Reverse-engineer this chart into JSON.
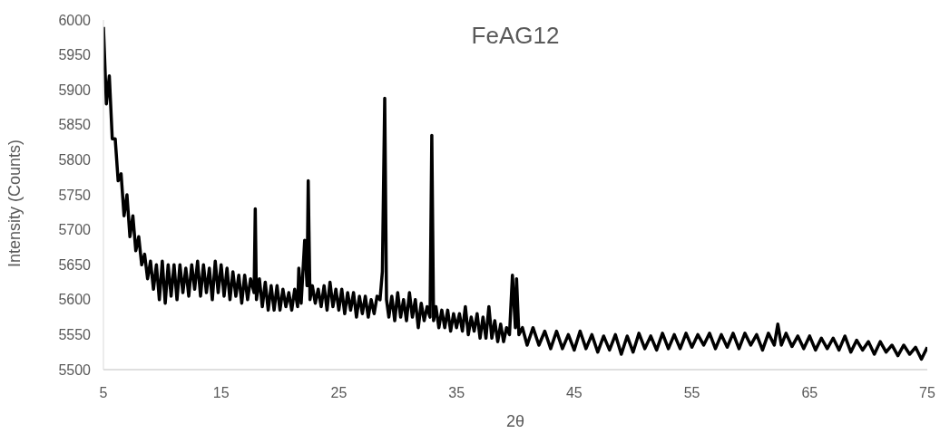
{
  "chart_data": {
    "type": "line",
    "title": "FeAG12",
    "xlabel": "2θ",
    "ylabel": "Intensity (Counts)",
    "xlim": [
      5,
      75
    ],
    "xticks": [
      5,
      15,
      25,
      35,
      45,
      55,
      65,
      75
    ],
    "ylim": [
      5500,
      6000
    ],
    "yticks": [
      5500,
      5550,
      5600,
      5650,
      5700,
      5750,
      5800,
      5850,
      5900,
      5950,
      6000
    ],
    "grid": false,
    "legend": false,
    "marker": "none",
    "line_style": "solid",
    "series": [
      {
        "color": "#000000",
        "x": [
          5,
          5.25,
          5.5,
          5.75,
          6,
          6.25,
          6.5,
          6.75,
          7,
          7.25,
          7.5,
          7.75,
          8,
          8.25,
          8.5,
          8.75,
          9,
          9.25,
          9.5,
          9.75,
          10,
          10.25,
          10.5,
          10.75,
          11,
          11.25,
          11.5,
          11.75,
          12,
          12.25,
          12.5,
          12.75,
          13,
          13.25,
          13.5,
          13.75,
          14,
          14.25,
          14.5,
          14.75,
          15,
          15.25,
          15.5,
          15.75,
          16,
          16.25,
          16.5,
          16.75,
          17,
          17.25,
          17.5,
          17.8,
          17.9,
          18,
          18.25,
          18.5,
          18.75,
          19,
          19.25,
          19.5,
          19.75,
          20,
          20.25,
          20.5,
          20.75,
          21,
          21.25,
          21.5,
          21.6,
          21.8,
          22.1,
          22.3,
          22.4,
          22.55,
          22.75,
          23,
          23.25,
          23.5,
          23.75,
          24,
          24.25,
          24.5,
          24.75,
          25,
          25.25,
          25.5,
          25.75,
          26,
          26.25,
          26.5,
          26.75,
          27,
          27.25,
          27.5,
          27.75,
          28,
          28.25,
          28.5,
          28.7,
          28.9,
          29.05,
          29.25,
          29.5,
          29.75,
          30,
          30.25,
          30.5,
          30.75,
          31,
          31.25,
          31.5,
          31.75,
          32,
          32.25,
          32.5,
          32.75,
          32.9,
          33.05,
          33.25,
          33.5,
          33.75,
          34,
          34.25,
          34.5,
          34.75,
          35,
          35.25,
          35.5,
          35.75,
          36,
          36.25,
          36.5,
          36.75,
          37,
          37.25,
          37.5,
          37.75,
          38,
          38.25,
          38.5,
          38.75,
          39,
          39.25,
          39.5,
          39.75,
          40,
          40.1,
          40.3,
          40.6,
          41,
          41.5,
          42,
          42.5,
          43,
          43.5,
          44,
          44.5,
          45,
          45.5,
          46,
          46.5,
          47,
          47.5,
          48,
          48.5,
          49,
          49.5,
          50,
          50.5,
          51,
          51.5,
          52,
          52.5,
          53,
          53.5,
          54,
          54.5,
          55,
          55.5,
          56,
          56.5,
          57,
          57.5,
          58,
          58.5,
          59,
          59.5,
          60,
          60.5,
          61,
          61.5,
          62,
          62.3,
          62.6,
          63,
          63.5,
          64,
          64.5,
          65,
          65.5,
          66,
          66.5,
          67,
          67.5,
          68,
          68.5,
          69,
          69.5,
          70,
          70.5,
          71,
          71.5,
          72,
          72.5,
          73,
          73.5,
          74,
          74.5,
          75
        ],
        "values": [
          5990,
          5880,
          5920,
          5830,
          5830,
          5770,
          5780,
          5720,
          5750,
          5690,
          5720,
          5670,
          5690,
          5650,
          5665,
          5630,
          5655,
          5615,
          5650,
          5600,
          5655,
          5595,
          5650,
          5605,
          5650,
          5600,
          5650,
          5610,
          5645,
          5605,
          5650,
          5615,
          5655,
          5605,
          5650,
          5610,
          5645,
          5600,
          5655,
          5610,
          5650,
          5605,
          5645,
          5600,
          5640,
          5605,
          5635,
          5595,
          5635,
          5600,
          5630,
          5610,
          5730,
          5600,
          5630,
          5590,
          5625,
          5585,
          5620,
          5585,
          5620,
          5585,
          5615,
          5590,
          5610,
          5585,
          5615,
          5590,
          5645,
          5595,
          5685,
          5620,
          5770,
          5600,
          5620,
          5595,
          5615,
          5590,
          5620,
          5585,
          5625,
          5590,
          5615,
          5585,
          5615,
          5580,
          5610,
          5585,
          5610,
          5575,
          5605,
          5580,
          5605,
          5575,
          5600,
          5580,
          5605,
          5600,
          5640,
          5888,
          5600,
          5575,
          5605,
          5570,
          5610,
          5575,
          5600,
          5570,
          5610,
          5575,
          5600,
          5560,
          5595,
          5570,
          5590,
          5575,
          5835,
          5570,
          5590,
          5560,
          5585,
          5560,
          5585,
          5555,
          5580,
          5560,
          5580,
          5555,
          5590,
          5550,
          5575,
          5555,
          5580,
          5545,
          5575,
          5545,
          5590,
          5545,
          5570,
          5540,
          5565,
          5540,
          5560,
          5550,
          5635,
          5560,
          5630,
          5550,
          5560,
          5535,
          5560,
          5535,
          5555,
          5530,
          5555,
          5530,
          5550,
          5528,
          5555,
          5530,
          5550,
          5525,
          5548,
          5528,
          5550,
          5522,
          5548,
          5525,
          5552,
          5530,
          5548,
          5528,
          5552,
          5530,
          5550,
          5530,
          5552,
          5532,
          5550,
          5535,
          5552,
          5530,
          5550,
          5532,
          5552,
          5530,
          5552,
          5535,
          5550,
          5528,
          5552,
          5535,
          5565,
          5535,
          5552,
          5533,
          5548,
          5530,
          5548,
          5528,
          5545,
          5530,
          5545,
          5528,
          5548,
          5525,
          5542,
          5528,
          5540,
          5522,
          5540,
          5525,
          5535,
          5520,
          5535,
          5522,
          5532,
          5515,
          5532
        ]
      }
    ]
  }
}
